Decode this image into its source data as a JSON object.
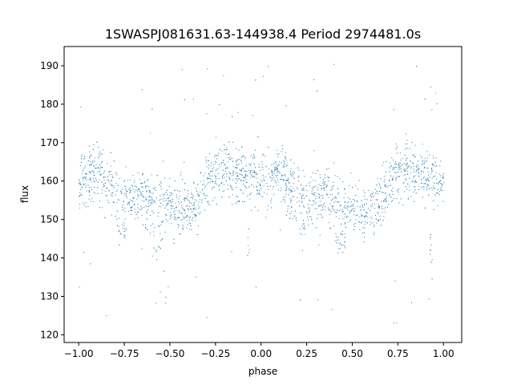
{
  "chart_data": {
    "type": "scatter",
    "title": "1SWASPJ081631.63-144938.4 Period 2974481.0s",
    "xlabel": "phase",
    "ylabel": "flux",
    "xlim": [
      -1.08,
      1.1
    ],
    "ylim": [
      118,
      195
    ],
    "xticks": [
      -1.0,
      -0.75,
      -0.5,
      -0.25,
      0.0,
      0.25,
      0.5,
      0.75,
      1.0
    ],
    "xtick_labels": [
      "−1.00",
      "−0.75",
      "−0.50",
      "−0.25",
      "0.00",
      "0.25",
      "0.50",
      "0.75",
      "1.00"
    ],
    "yticks": [
      120,
      130,
      140,
      150,
      160,
      170,
      180,
      190
    ],
    "ytick_labels": [
      "120",
      "130",
      "140",
      "150",
      "160",
      "170",
      "180",
      "190"
    ],
    "grid": false,
    "point_color": "#1f77b4",
    "series": [
      {
        "x_range": [
          -1.0,
          1.0
        ],
        "mirror_period": 1.0,
        "profile": [
          {
            "x": 0.0,
            "y": 160
          },
          {
            "x": 0.05,
            "y": 161
          },
          {
            "x": 0.1,
            "y": 163
          },
          {
            "x": 0.15,
            "y": 159
          },
          {
            "x": 0.2,
            "y": 158
          },
          {
            "x": 0.25,
            "y": 157
          },
          {
            "x": 0.3,
            "y": 156
          },
          {
            "x": 0.35,
            "y": 156
          },
          {
            "x": 0.4,
            "y": 155
          },
          {
            "x": 0.45,
            "y": 154
          },
          {
            "x": 0.5,
            "y": 153
          },
          {
            "x": 0.55,
            "y": 152
          },
          {
            "x": 0.6,
            "y": 153
          },
          {
            "x": 0.65,
            "y": 154
          },
          {
            "x": 0.7,
            "y": 160
          },
          {
            "x": 0.75,
            "y": 163
          },
          {
            "x": 0.8,
            "y": 163
          },
          {
            "x": 0.85,
            "y": 162
          },
          {
            "x": 0.9,
            "y": 161
          },
          {
            "x": 0.95,
            "y": 162
          },
          {
            "x": 1.0,
            "y": 160
          }
        ],
        "dips": [
          {
            "x_start": 0.21,
            "x_end": 0.26,
            "y": 148
          },
          {
            "x_start": 0.4,
            "y_note": "",
            "x_end": 0.46,
            "y": 144
          },
          {
            "x_start": 0.92,
            "x_end": 0.94,
            "y": 143
          }
        ],
        "spread": 5
      }
    ]
  }
}
